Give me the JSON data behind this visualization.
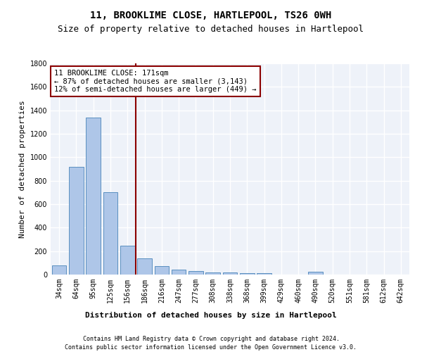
{
  "title": "11, BROOKLIME CLOSE, HARTLEPOOL, TS26 0WH",
  "subtitle": "Size of property relative to detached houses in Hartlepool",
  "xlabel": "Distribution of detached houses by size in Hartlepool",
  "ylabel": "Number of detached properties",
  "categories": [
    "34sqm",
    "64sqm",
    "95sqm",
    "125sqm",
    "156sqm",
    "186sqm",
    "216sqm",
    "247sqm",
    "277sqm",
    "308sqm",
    "338sqm",
    "368sqm",
    "399sqm",
    "429sqm",
    "460sqm",
    "490sqm",
    "520sqm",
    "551sqm",
    "581sqm",
    "612sqm",
    "642sqm"
  ],
  "values": [
    80,
    920,
    1340,
    700,
    245,
    140,
    75,
    45,
    28,
    20,
    20,
    10,
    10,
    0,
    0,
    25,
    0,
    0,
    0,
    0,
    0
  ],
  "bar_color": "#aec6e8",
  "bar_edge_color": "#5a8fc0",
  "vline_x": 4.5,
  "vline_color": "#8B0000",
  "annotation_text": "11 BROOKLIME CLOSE: 171sqm\n← 87% of detached houses are smaller (3,143)\n12% of semi-detached houses are larger (449) →",
  "annotation_box_color": "#8B0000",
  "ylim": [
    0,
    1800
  ],
  "yticks": [
    0,
    200,
    400,
    600,
    800,
    1000,
    1200,
    1400,
    1600,
    1800
  ],
  "footer_line1": "Contains HM Land Registry data © Crown copyright and database right 2024.",
  "footer_line2": "Contains public sector information licensed under the Open Government Licence v3.0.",
  "background_color": "#eef2f9",
  "grid_color": "#ffffff",
  "title_fontsize": 10,
  "subtitle_fontsize": 9,
  "axis_label_fontsize": 8,
  "tick_fontsize": 7,
  "footer_fontsize": 6,
  "annotation_fontsize": 7.5
}
